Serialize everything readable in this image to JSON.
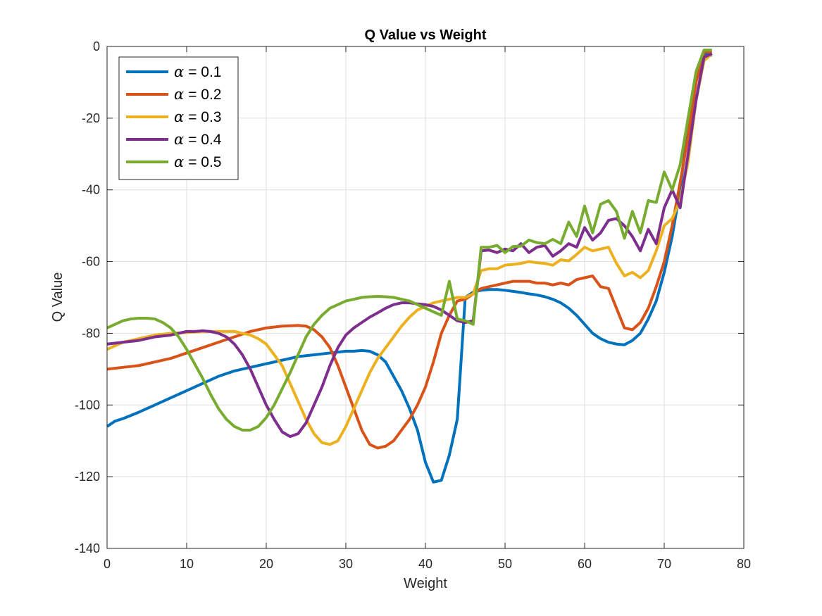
{
  "chart_data": {
    "type": "line",
    "title": "Q Value vs Weight",
    "xlabel": "Weight",
    "ylabel": "Q Value",
    "xlim": [
      0,
      80
    ],
    "ylim": [
      -140,
      0
    ],
    "xticks": [
      0,
      10,
      20,
      30,
      40,
      50,
      60,
      70,
      80
    ],
    "yticks": [
      -140,
      -120,
      -100,
      -80,
      -60,
      -40,
      -20,
      0
    ],
    "grid": true,
    "legend_position": "top-left",
    "series": [
      {
        "name": "α = 0.1",
        "legend_symbol": "α",
        "legend_value": "= 0.1",
        "color": "#0072BD",
        "x": [
          0,
          1,
          2,
          4,
          6,
          8,
          10,
          12,
          14,
          16,
          18,
          20,
          22,
          24,
          26,
          28,
          30,
          31,
          32,
          33,
          34,
          35,
          36,
          37,
          38,
          39,
          40,
          41,
          42,
          43,
          44,
          45,
          46,
          47,
          48,
          49,
          50,
          51,
          52,
          53,
          54,
          55,
          56,
          57,
          58,
          59,
          60,
          61,
          62,
          63,
          64,
          65,
          66,
          67,
          68,
          69,
          70,
          71,
          72,
          73,
          74,
          75,
          76
        ],
        "y": [
          -106,
          -104.5,
          -103.8,
          -102,
          -100,
          -98,
          -96,
          -94,
          -92,
          -90.5,
          -89.5,
          -88.5,
          -87.5,
          -86.5,
          -86,
          -85.5,
          -85,
          -85,
          -84.8,
          -85,
          -86,
          -88,
          -92,
          -96,
          -101,
          -107,
          -116,
          -121.5,
          -121,
          -114,
          -104,
          -70,
          -68.5,
          -68,
          -67.8,
          -67.8,
          -68,
          -68.3,
          -68.6,
          -69,
          -69.3,
          -69.8,
          -70.5,
          -71.5,
          -73,
          -75,
          -77.5,
          -80,
          -81.5,
          -82.5,
          -83,
          -83.2,
          -82,
          -80,
          -76,
          -71,
          -63,
          -53,
          -40,
          -22,
          -8,
          -2,
          -2.5
        ]
      },
      {
        "name": "α = 0.2",
        "legend_symbol": "α",
        "legend_value": "= 0.2",
        "color": "#D95319",
        "x": [
          0,
          2,
          4,
          6,
          8,
          10,
          12,
          14,
          16,
          18,
          20,
          22,
          24,
          25,
          26,
          27,
          28,
          29,
          30,
          31,
          32,
          33,
          34,
          35,
          36,
          37,
          38,
          39,
          40,
          41,
          42,
          43,
          44,
          45,
          46,
          47,
          48,
          49,
          50,
          51,
          52,
          53,
          54,
          55,
          56,
          57,
          58,
          59,
          60,
          61,
          62,
          63,
          64,
          65,
          66,
          67,
          68,
          69,
          70,
          71,
          72,
          73,
          74,
          75,
          76
        ],
        "y": [
          -90,
          -89.5,
          -89,
          -88,
          -87,
          -85.5,
          -84,
          -82.5,
          -81,
          -79.5,
          -78.5,
          -78,
          -77.8,
          -78,
          -79,
          -81,
          -84,
          -89,
          -95,
          -101,
          -107,
          -111,
          -112,
          -111.5,
          -110,
          -107,
          -104,
          -100,
          -95,
          -88,
          -80,
          -75,
          -71,
          -70.5,
          -69,
          -67.5,
          -67,
          -66.5,
          -66,
          -65.5,
          -65.5,
          -65.5,
          -66,
          -66,
          -66.5,
          -66,
          -66.5,
          -65,
          -64.5,
          -64,
          -67,
          -67.5,
          -73,
          -78.5,
          -79,
          -77,
          -73,
          -67,
          -60,
          -50,
          -38,
          -25,
          -10,
          -1.5,
          -1.5
        ]
      },
      {
        "name": "α = 0.3",
        "legend_symbol": "α",
        "legend_value": "= 0.3",
        "color": "#EDB120",
        "x": [
          0,
          2,
          4,
          6,
          8,
          10,
          12,
          14,
          16,
          17,
          18,
          19,
          20,
          21,
          22,
          23,
          24,
          25,
          26,
          27,
          28,
          29,
          30,
          31,
          32,
          33,
          34,
          35,
          36,
          37,
          38,
          39,
          40,
          41,
          42,
          43,
          44,
          45,
          46,
          47,
          48,
          49,
          50,
          51,
          52,
          53,
          54,
          55,
          56,
          57,
          58,
          59,
          60,
          61,
          62,
          63,
          64,
          65,
          66,
          67,
          68,
          69,
          70,
          71,
          72,
          73,
          74,
          75,
          76
        ],
        "y": [
          -84.5,
          -82.5,
          -81.5,
          -80.5,
          -80,
          -79.8,
          -79.5,
          -79.5,
          -79.5,
          -80,
          -80.5,
          -81.5,
          -83,
          -86,
          -89,
          -94,
          -99,
          -104,
          -108,
          -110.5,
          -111,
          -110,
          -106,
          -101,
          -96,
          -91,
          -87,
          -84,
          -81,
          -78,
          -75.5,
          -73.5,
          -72.5,
          -71.5,
          -71,
          -70.5,
          -70,
          -70,
          -69,
          -62.5,
          -62,
          -62,
          -61,
          -60.8,
          -60.5,
          -60,
          -60.3,
          -60.5,
          -61,
          -59.5,
          -59.8,
          -58,
          -56,
          -57,
          -56.5,
          -56,
          -60.5,
          -64,
          -63,
          -64.5,
          -62.5,
          -57,
          -50,
          -48,
          -43,
          -32,
          -15,
          -4,
          -2
        ]
      },
      {
        "name": "α = 0.4",
        "legend_symbol": "α",
        "legend_value": "= 0.4",
        "color": "#7E2F8E",
        "x": [
          0,
          2,
          4,
          6,
          8,
          10,
          11,
          12,
          13,
          14,
          15,
          16,
          17,
          18,
          19,
          20,
          21,
          22,
          23,
          24,
          25,
          26,
          27,
          28,
          29,
          30,
          31,
          32,
          33,
          34,
          35,
          36,
          37,
          38,
          39,
          40,
          41,
          42,
          43,
          44,
          45,
          46,
          47,
          48,
          49,
          50,
          51,
          52,
          53,
          54,
          55,
          56,
          57,
          58,
          59,
          60,
          61,
          62,
          63,
          64,
          65,
          66,
          67,
          68,
          69,
          70,
          71,
          72,
          73,
          74,
          75,
          76
        ],
        "y": [
          -83,
          -82.5,
          -82,
          -81,
          -80.5,
          -79.5,
          -79.5,
          -79.3,
          -79.5,
          -80,
          -81,
          -83,
          -86,
          -90,
          -95,
          -100,
          -104,
          -107.5,
          -108.8,
          -108,
          -105,
          -100,
          -95,
          -89,
          -84,
          -80.5,
          -78.5,
          -77,
          -75.5,
          -74.3,
          -73,
          -72,
          -71.5,
          -71.5,
          -71.8,
          -72,
          -72.5,
          -73.5,
          -75,
          -76.5,
          -77,
          -76.5,
          -57,
          -56.8,
          -57.5,
          -56.5,
          -57,
          -55,
          -57.5,
          -56,
          -55.5,
          -58.5,
          -57,
          -55,
          -56,
          -50.5,
          -54,
          -52,
          -48.5,
          -48,
          -50,
          -53,
          -57,
          -51,
          -55,
          -45,
          -40,
          -45,
          -30,
          -15,
          -3,
          -2
        ]
      },
      {
        "name": "α = 0.5",
        "legend_symbol": "α",
        "legend_value": "= 0.5",
        "color": "#77AC30",
        "x": [
          0,
          1,
          2,
          3,
          4,
          5,
          6,
          7,
          8,
          9,
          10,
          11,
          12,
          13,
          14,
          15,
          16,
          17,
          18,
          19,
          20,
          21,
          22,
          23,
          24,
          25,
          26,
          27,
          28,
          29,
          30,
          31,
          32,
          33,
          34,
          35,
          36,
          37,
          38,
          39,
          40,
          41,
          42,
          43,
          44,
          45,
          46,
          47,
          48,
          49,
          50,
          51,
          52,
          53,
          54,
          55,
          56,
          57,
          58,
          59,
          60,
          61,
          62,
          63,
          64,
          65,
          66,
          67,
          68,
          69,
          70,
          71,
          72,
          73,
          74,
          75,
          76
        ],
        "y": [
          -78.5,
          -77.5,
          -76.5,
          -76,
          -75.8,
          -75.8,
          -76,
          -77,
          -78.5,
          -81,
          -84.5,
          -88.5,
          -92.5,
          -97,
          -101,
          -104,
          -106,
          -107,
          -107,
          -106,
          -103.5,
          -100,
          -95.5,
          -91,
          -86,
          -81,
          -77.5,
          -75,
          -73,
          -72,
          -71,
          -70.5,
          -70,
          -69.8,
          -69.7,
          -69.8,
          -70,
          -70.5,
          -71,
          -72,
          -73,
          -74,
          -75,
          -65.5,
          -76,
          -76.5,
          -77.5,
          -56,
          -56,
          -55.5,
          -57.5,
          -55.8,
          -55.7,
          -54,
          -54.7,
          -55,
          -53.8,
          -55,
          -49,
          -53,
          -44.5,
          -52,
          -44,
          -43,
          -46,
          -53.5,
          -46,
          -52,
          -43,
          -43.5,
          -35,
          -40,
          -33,
          -20,
          -7,
          -1,
          -1
        ]
      }
    ]
  }
}
